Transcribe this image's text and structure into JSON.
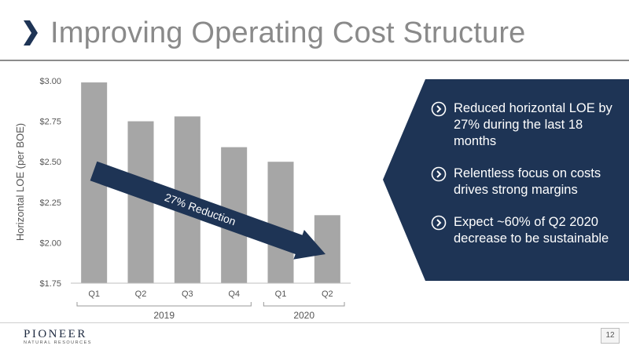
{
  "slide": {
    "title": "Improving Operating Cost Structure",
    "page_number": "12"
  },
  "bullets": [
    {
      "text": "Reduced horizontal LOE by 27% during the last 18 months"
    },
    {
      "text": "Relentless focus on costs drives strong margins"
    },
    {
      "text": "Expect ~60% of Q2 2020 decrease to be sustainable"
    }
  ],
  "logo": {
    "name": "PIONEER",
    "sub": "NATURAL RESOURCES"
  },
  "colors": {
    "bar": "#a6a6a6",
    "navy": "#1e3455",
    "title_gray": "#8a8a8a",
    "axis_text": "#555555"
  },
  "chart_data": {
    "type": "bar",
    "ylabel": "Horizontal LOE (per BOE)",
    "ylim": [
      1.75,
      3.0
    ],
    "yticks": [
      "$3.00",
      "$2.75",
      "$2.50",
      "$2.25",
      "$2.00",
      "$1.75"
    ],
    "ytick_values": [
      3.0,
      2.75,
      2.5,
      2.25,
      2.0,
      1.75
    ],
    "categories": [
      "Q1",
      "Q2",
      "Q3",
      "Q4",
      "Q1",
      "Q2"
    ],
    "values": [
      2.99,
      2.75,
      2.78,
      2.59,
      2.5,
      2.17
    ],
    "groups": [
      {
        "label": "2019",
        "start": 0,
        "end": 3
      },
      {
        "label": "2020",
        "start": 4,
        "end": 5
      }
    ],
    "annotation": "27% Reduction",
    "grid": false
  }
}
